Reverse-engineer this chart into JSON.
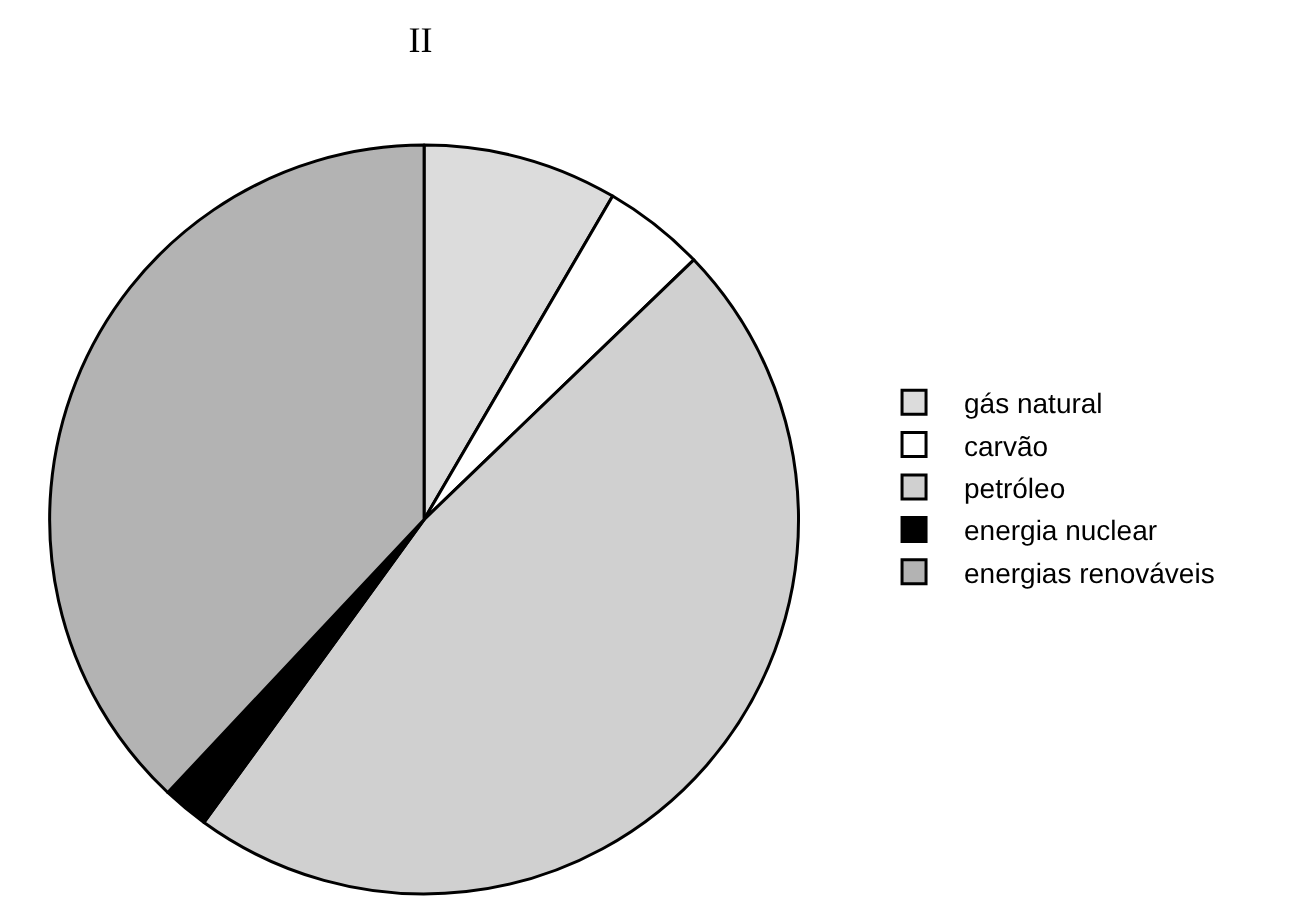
{
  "chart_data": {
    "type": "pie",
    "title": "II",
    "categories": [
      "gás natural",
      "carvão",
      "petróleo",
      "energia nuclear",
      "energias renováveis"
    ],
    "values": [
      8.4,
      4.4,
      47.2,
      2.0,
      38.0
    ],
    "colors": [
      "#dcdcdc",
      "#ffffff",
      "#d0d0d0",
      "#000000",
      "#b3b3b3"
    ],
    "legend": "right"
  }
}
